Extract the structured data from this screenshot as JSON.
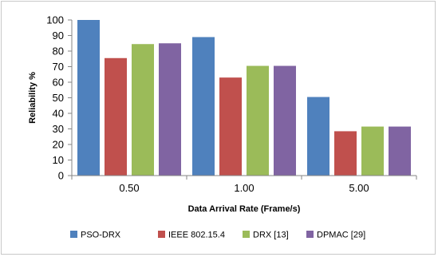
{
  "chart_data": {
    "type": "bar",
    "categories": [
      "0.50",
      "1.00",
      "5.00"
    ],
    "series": [
      {
        "name": "PSO-DRX",
        "values": [
          100,
          89,
          50.5
        ],
        "color": "#4f81bd"
      },
      {
        "name": "IEEE 802.15.4",
        "values": [
          75.5,
          63,
          28.5
        ],
        "color": "#c0504d"
      },
      {
        "name": "DRX [13]",
        "values": [
          84.5,
          70.5,
          31.5
        ],
        "color": "#9bbb59"
      },
      {
        "name": "DPMAC [29]",
        "values": [
          85,
          70.5,
          31.5
        ],
        "color": "#8064a2"
      }
    ],
    "xlabel": "Data Arrival Rate (Frame/s)",
    "ylabel": "Reliability  %",
    "ylim": [
      0,
      100
    ],
    "yticks": [
      0,
      10,
      20,
      30,
      40,
      50,
      60,
      70,
      80,
      90,
      100
    ],
    "grid": false,
    "legend_position": "bottom"
  }
}
